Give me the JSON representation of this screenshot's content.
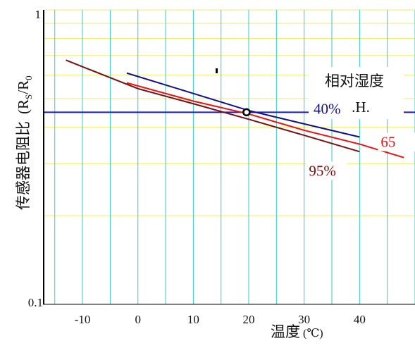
{
  "chart_data": {
    "type": "line",
    "xlabel": "温度",
    "xlabel_unit": "(℃)",
    "ylabel": "传感器电阻比",
    "ylabel_ratio": {
      "open": "(R",
      "num_sub": "S",
      "slash": "/R",
      "den_sub": "0"
    },
    "xlim": [
      -17,
      50
    ],
    "ylim": [
      0.1,
      1
    ],
    "yscale": "log",
    "x_ticks": [
      -10,
      0,
      10,
      20,
      30,
      40
    ],
    "y_tick_labels": {
      "top": "1",
      "bottom": "0.1"
    },
    "grid": true,
    "legend": {
      "line1": "相对湿度",
      "line2": "R.H."
    },
    "reference_line": {
      "y": 0.449,
      "color": "#1a1acc"
    },
    "marker": {
      "x": 19.6,
      "y": 0.449
    },
    "series": [
      {
        "name": "40%",
        "color": "#10108a",
        "x": [
          -2,
          10,
          20,
          30,
          40
        ],
        "y": [
          0.61,
          0.52,
          0.455,
          0.41,
          0.37
        ]
      },
      {
        "name": "65",
        "color": "#ee1111",
        "x": [
          -2,
          10,
          20,
          30,
          40,
          48
        ],
        "y": [
          0.565,
          0.49,
          0.443,
          0.39,
          0.35,
          0.315
        ]
      },
      {
        "name": "95%",
        "color": "#7a0f0f",
        "x": [
          -13,
          0,
          10,
          20,
          30,
          40
        ],
        "y": [
          0.675,
          0.54,
          0.48,
          0.425,
          0.375,
          0.33
        ]
      }
    ]
  }
}
